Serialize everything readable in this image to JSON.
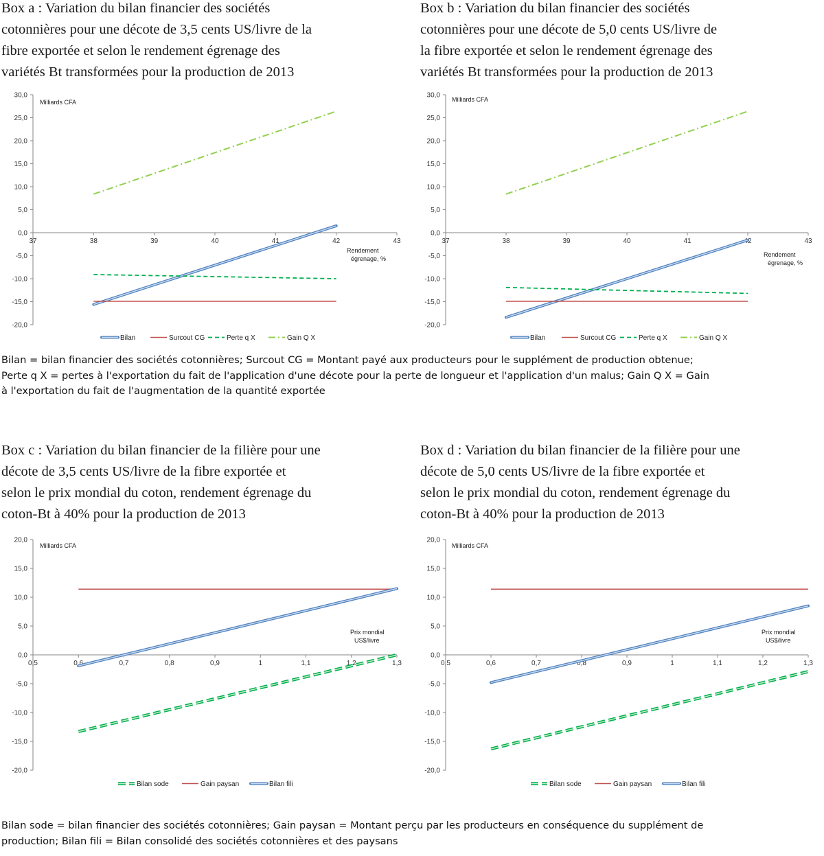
{
  "boxes": [
    {
      "title_lines": [
        "Box a : Variation du bilan financier des sociétés",
        "cotonnières pour une décote de 3,5 cents US/livre de la",
        "fibre exportée et selon le rendement égrenage des",
        "variétés Bt transformées pour la production de 2013"
      ]
    },
    {
      "title_lines": [
        "Box b : Variation du bilan financier des sociétés",
        "cotonnières pour une décote de 5,0 cents US/livre de",
        "la fibre exportée et selon le rendement égrenage des",
        "variétés Bt transformées pour la production de 2013"
      ]
    },
    {
      "title_lines": [
        "Box c : Variation du bilan financier de la filière pour une",
        "décote de 3,5 cents US/livre de la fibre exportée et",
        "selon le prix mondial du coton, rendement égrenage du",
        "coton-Bt à 40% pour la production de 2013"
      ]
    },
    {
      "title_lines": [
        "Box d : Variation du bilan financier de la filière pour une",
        "décote de 5,0 cents US/livre de la fibre exportée et",
        "selon le prix mondial du coton, rendement égrenage du",
        "coton-Bt à 40% pour la production de 2013"
      ]
    }
  ],
  "notes": {
    "top_lines": [
      "Bilan = bilan financier des sociétés cotonnières; Surcout CG = Montant payé aux producteurs pour le supplément de production obtenue;",
      "Perte q X = pertes à l'exportation du fait de l'application d'une décote pour la perte de longueur et l'application d'un malus; Gain Q X = Gain",
      "à l'exportation du fait de l'augmentation de la quantité exportée"
    ],
    "bottom_lines": [
      "Bilan sode = bilan financier des sociétés cotonnières; Gain paysan = Montant perçu par les producteurs en conséquence du supplément de",
      "production; Bilan fili = Bilan consolidé des sociétés cotonnières et des paysans"
    ]
  },
  "colors": {
    "bilan": "#4f81bd",
    "bilan_inner": "#c6d9f1",
    "surcout": "#c0504d",
    "perte": "#00b050",
    "gain": "#92d050",
    "bilan_sode": "#00b050",
    "bilan_sode_inner": "#c3eac3",
    "axis": "#868686"
  },
  "chart_data": [
    {
      "type": "line",
      "ylabel": "Milliards CFA",
      "xlabel": "Rendement égrenage, %",
      "xlabel_lines": [
        "Rendement",
        "égrenage, %"
      ],
      "xlim": [
        37,
        43
      ],
      "ylim": [
        -20,
        30
      ],
      "x_ticks": [
        "37",
        "38",
        "39",
        "40",
        "41",
        "42",
        "43"
      ],
      "y_ticks": [
        "30,0",
        "25,0",
        "20,0",
        "15,0",
        "10,0",
        "5,0",
        "0,0",
        "-5,0",
        "-10,0",
        "-15,0",
        "-20,0"
      ],
      "series": [
        {
          "name": "Bilan",
          "style": "bilan",
          "x": [
            38,
            42
          ],
          "y": [
            -15.6,
            1.5
          ]
        },
        {
          "name": "Surcout CG",
          "style": "surcout",
          "x": [
            38,
            42
          ],
          "y": [
            -14.9,
            -14.9
          ]
        },
        {
          "name": "Perte q X",
          "style": "perte",
          "x": [
            38,
            42
          ],
          "y": [
            -9.1,
            -10.0
          ]
        },
        {
          "name": "Gain Q X",
          "style": "gain",
          "x": [
            38,
            42
          ],
          "y": [
            8.4,
            26.4
          ]
        }
      ],
      "grid": false,
      "legend_position": "bottom"
    },
    {
      "type": "line",
      "ylabel": "Milliards CFA",
      "xlabel": "Rendement égrenage, %",
      "xlabel_lines": [
        "Rendement",
        "égrenage, %"
      ],
      "xlim": [
        37,
        43
      ],
      "ylim": [
        -20,
        30
      ],
      "x_ticks": [
        "37",
        "38",
        "39",
        "40",
        "41",
        "42",
        "43"
      ],
      "y_ticks": [
        "30,0",
        "25,0",
        "20,0",
        "15,0",
        "10,0",
        "5,0",
        "0,0",
        "-5,0",
        "-10,0",
        "-15,0",
        "-20,0"
      ],
      "series": [
        {
          "name": "Bilan",
          "style": "bilan",
          "x": [
            38,
            42
          ],
          "y": [
            -18.4,
            -1.6
          ]
        },
        {
          "name": "Surcout CG",
          "style": "surcout",
          "x": [
            38,
            42
          ],
          "y": [
            -14.9,
            -14.9
          ]
        },
        {
          "name": "Perte q X",
          "style": "perte",
          "x": [
            38,
            42
          ],
          "y": [
            -11.9,
            -13.2
          ]
        },
        {
          "name": "Gain Q X",
          "style": "gain",
          "x": [
            38,
            42
          ],
          "y": [
            8.4,
            26.4
          ]
        }
      ],
      "grid": false,
      "legend_position": "bottom"
    },
    {
      "type": "line",
      "ylabel": "Milliards CFA",
      "xlabel": "Prix mondial US$/livre",
      "xlabel_lines": [
        "Prix mondial",
        "US$/livre"
      ],
      "xlim": [
        0.5,
        1.3
      ],
      "ylim": [
        -20,
        20
      ],
      "x_ticks": [
        "0,5",
        "0,6",
        "0,7",
        "0,8",
        "0,9",
        "1",
        "1,1",
        "1,2",
        "1,3"
      ],
      "y_ticks": [
        "20,0",
        "15,0",
        "10,0",
        "5,0",
        "0,0",
        "-5,0",
        "-10,0",
        "-15,0",
        "-20,0"
      ],
      "series": [
        {
          "name": "Bilan sode",
          "style": "bilan_sode",
          "x": [
            0.6,
            1.3
          ],
          "y": [
            -13.3,
            0.0
          ]
        },
        {
          "name": "Gain paysan",
          "style": "surcout",
          "x": [
            0.6,
            1.3
          ],
          "y": [
            11.4,
            11.4
          ]
        },
        {
          "name": "Bilan fili",
          "style": "bilan",
          "x": [
            0.6,
            1.3
          ],
          "y": [
            -1.9,
            11.5
          ]
        }
      ],
      "grid": false,
      "legend_position": "bottom"
    },
    {
      "type": "line",
      "ylabel": "Milliards CFA",
      "xlabel": "Prix mondial US$/livre",
      "xlabel_lines": [
        "Prix mondial",
        "US$/livre"
      ],
      "xlim": [
        0.5,
        1.3
      ],
      "ylim": [
        -20,
        20
      ],
      "x_ticks": [
        "0,5",
        "0,6",
        "0,7",
        "0,8",
        "0,9",
        "1",
        "1,1",
        "1,2",
        "1,3"
      ],
      "y_ticks": [
        "20,0",
        "15,0",
        "10,0",
        "5,0",
        "0,0",
        "-5,0",
        "-10,0",
        "-15,0",
        "-20,0"
      ],
      "series": [
        {
          "name": "Bilan sode",
          "style": "bilan_sode",
          "x": [
            0.6,
            1.3
          ],
          "y": [
            -16.3,
            -2.9
          ]
        },
        {
          "name": "Gain paysan",
          "style": "surcout",
          "x": [
            0.6,
            1.3
          ],
          "y": [
            11.4,
            11.4
          ]
        },
        {
          "name": "Bilan fili",
          "style": "bilan",
          "x": [
            0.6,
            1.3
          ],
          "y": [
            -4.8,
            8.5
          ]
        }
      ],
      "grid": false,
      "legend_position": "bottom"
    }
  ]
}
